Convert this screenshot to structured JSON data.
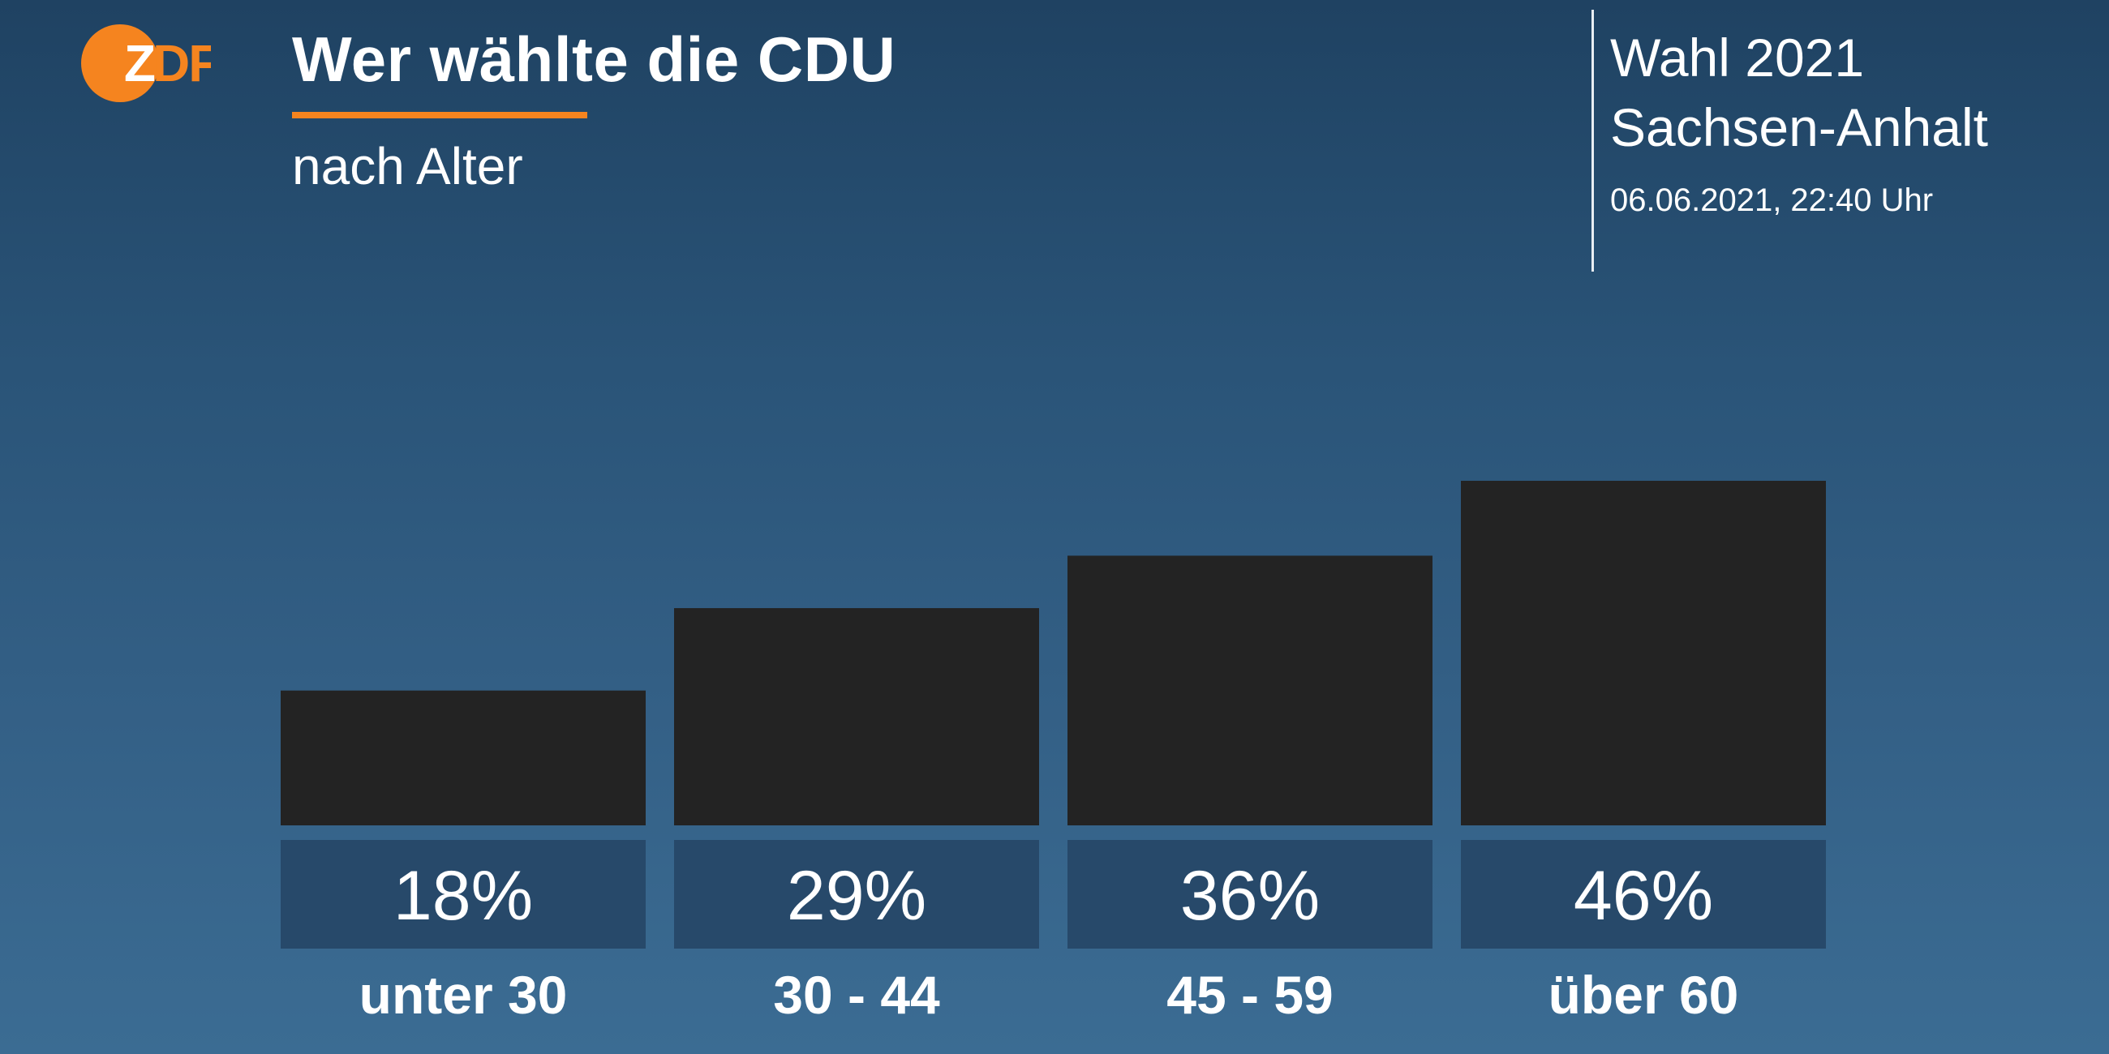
{
  "logo": {
    "text": "ZDF",
    "colors": {
      "circle": "#f5841f",
      "text": "#ffffff",
      "letters": "#f5841f"
    }
  },
  "header": {
    "title": "Wer wählte die CDU",
    "subtitle": "nach Alter",
    "election_line1": "Wahl 2021",
    "election_line2": "Sachsen-Anhalt",
    "timestamp": "06.06.2021, 22:40 Uhr"
  },
  "colors": {
    "accent": "#f5841f",
    "bar": "#232323",
    "value_box": "#27496a"
  },
  "chart_data": {
    "type": "bar",
    "title": "Wer wählte die CDU",
    "subtitle": "nach Alter",
    "categories": [
      "unter 30",
      "30 - 44",
      "45 - 59",
      "über 60"
    ],
    "values": [
      18,
      29,
      36,
      46
    ],
    "value_labels": [
      "18%",
      "29%",
      "36%",
      "46%"
    ],
    "unit": "%",
    "ylim": [
      0,
      46
    ],
    "grid": false,
    "legend": "none"
  }
}
